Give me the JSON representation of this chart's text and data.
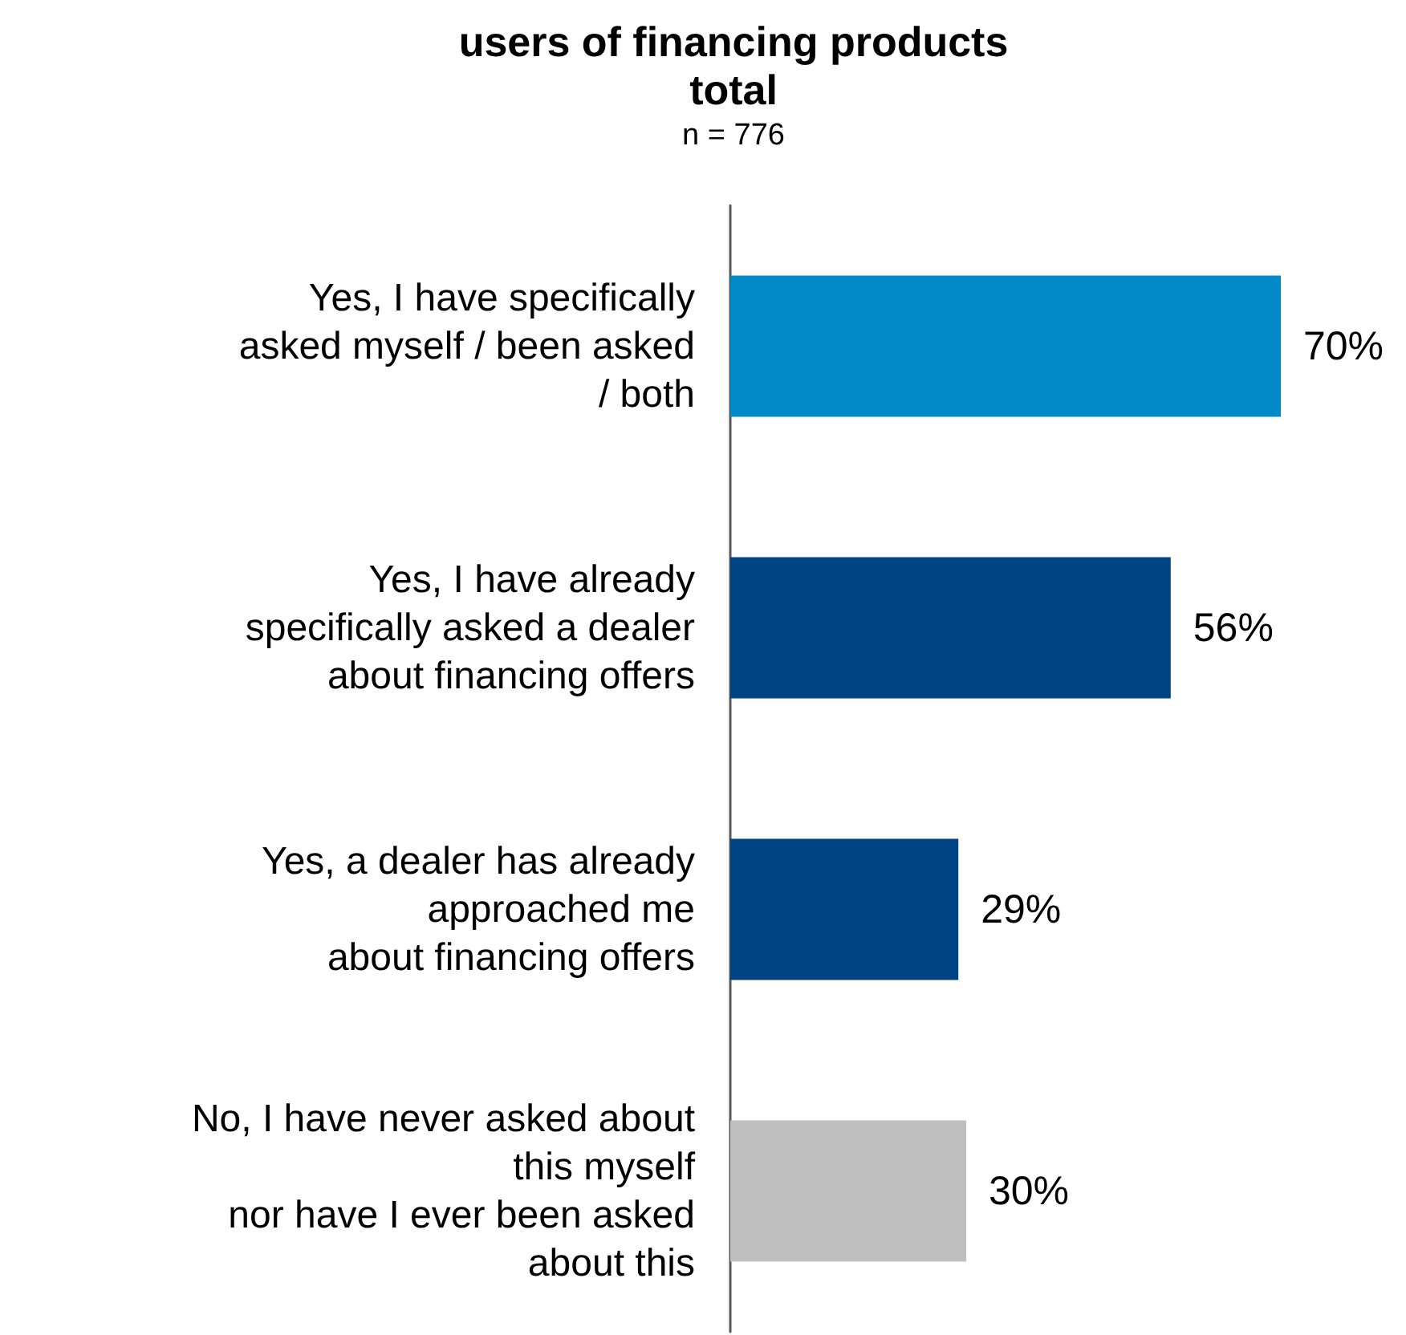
{
  "chart_data": {
    "type": "bar",
    "orientation": "horizontal",
    "title": "users of financing products\ntotal",
    "subtitle": "n = 776",
    "categories": [
      "Yes, I have specifically\nasked myself / been asked\n/ both",
      "Yes, I have already\nspecifically asked a dealer\nabout financing offers",
      "Yes, a dealer has already\napproached me\nabout financing offers",
      "No, I have never asked about\nthis myself\nnor have I ever been asked\nabout this"
    ],
    "values": [
      70,
      56,
      29,
      30
    ],
    "value_labels": [
      "70%",
      "56%",
      "29%",
      "30%"
    ],
    "colors": [
      "#0088c8",
      "#004385",
      "#004385",
      "#bfbfbf"
    ]
  }
}
